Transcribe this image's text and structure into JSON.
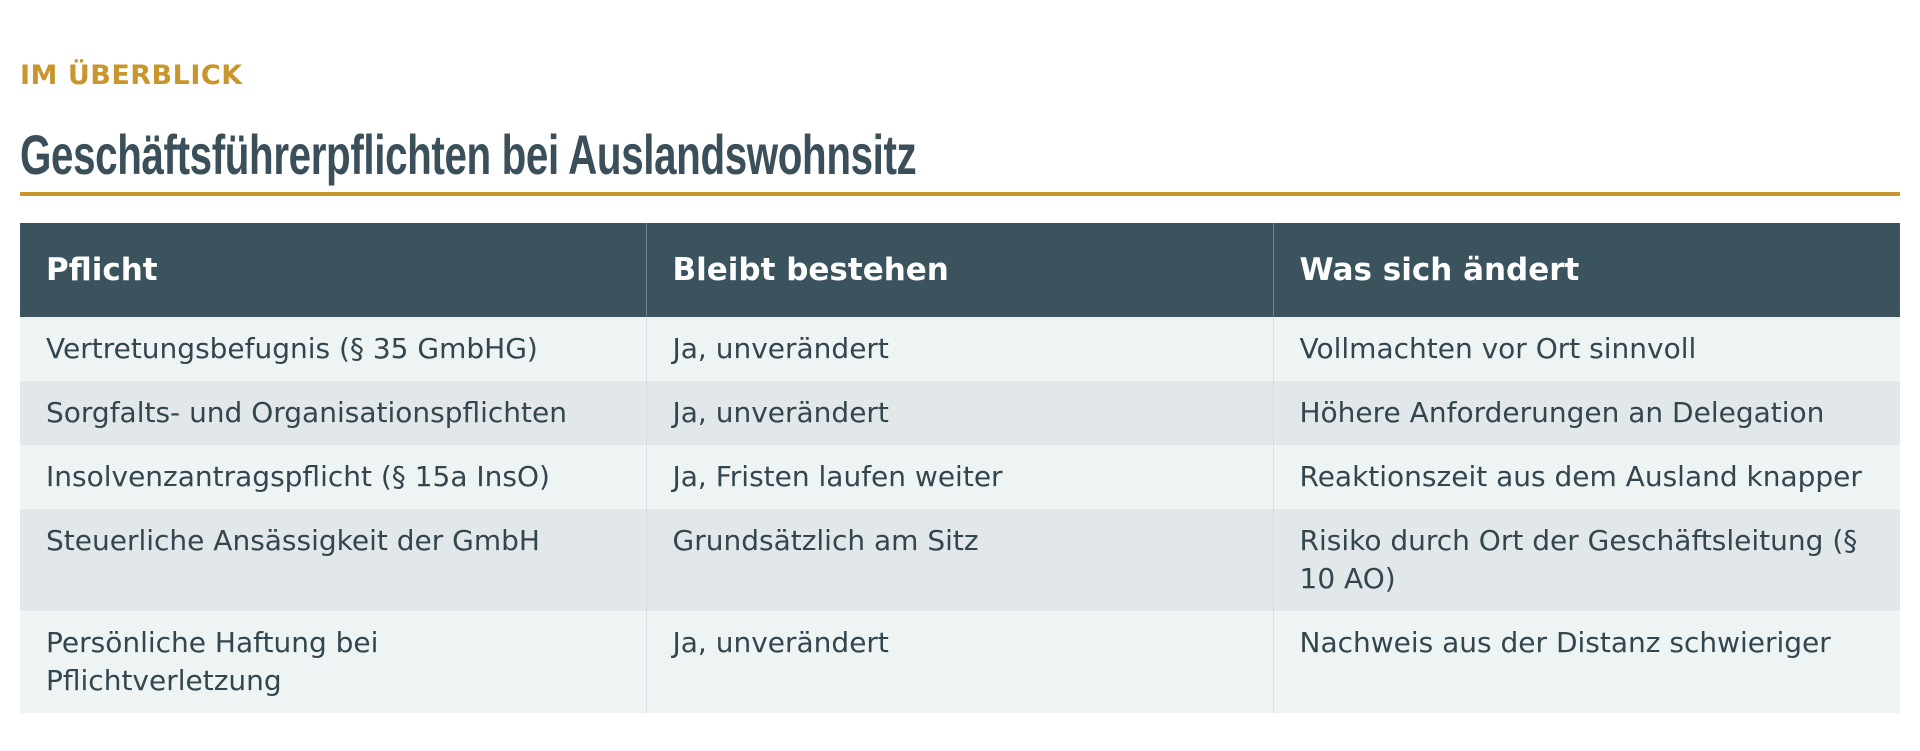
{
  "header": {
    "eyebrow": "IM ÜBERBLICK",
    "title": "Geschäftsführerpflichten bei Auslandswohnsitz"
  },
  "table": {
    "columns": [
      "Pflicht",
      "Bleibt bestehen",
      "Was sich ändert"
    ],
    "rows": [
      [
        "Vertretungsbefugnis (§ 35 GmbHG)",
        "Ja, unverändert",
        "Vollmachten vor Ort sinnvoll"
      ],
      [
        "Sorgfalts- und Organisationspflichten",
        "Ja, unverändert",
        "Höhere Anforderungen an Delegation"
      ],
      [
        "Insolvenzantragspflicht (§ 15a InsO)",
        "Ja, Fristen laufen weiter",
        "Reaktionszeit aus dem Ausland knapper"
      ],
      [
        "Steuerliche Ansässigkeit der GmbH",
        "Grundsätzlich am Sitz",
        "Risiko durch Ort der Geschäftsleitung (§ 10 AO)"
      ],
      [
        "Persönliche Haftung bei Pflichtverletzung",
        "Ja, unverändert",
        "Nachweis aus der Distanz schwieriger"
      ]
    ]
  }
}
